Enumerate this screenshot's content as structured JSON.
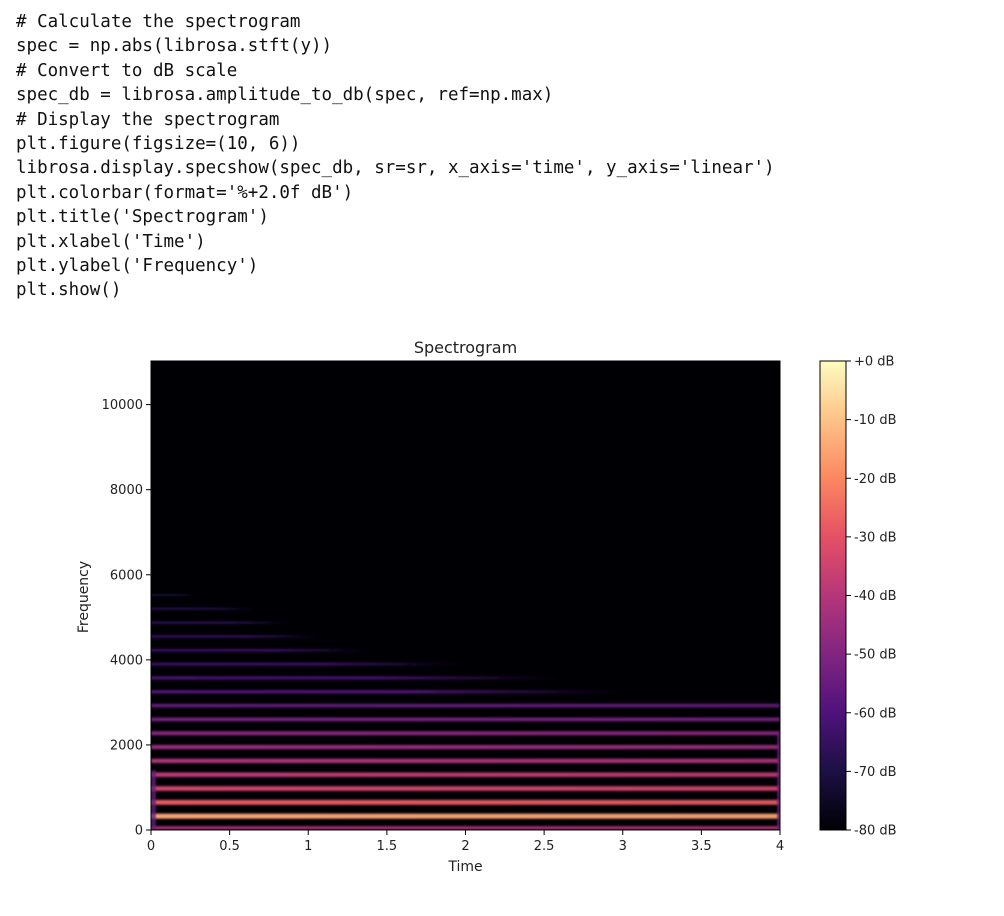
{
  "code": {
    "lines": [
      "# Calculate the spectrogram",
      "spec = np.abs(librosa.stft(y))",
      "# Convert to dB scale",
      "spec_db = librosa.amplitude_to_db(spec, ref=np.max)",
      "# Display the spectrogram",
      "plt.figure(figsize=(10, 6))",
      "librosa.display.specshow(spec_db, sr=sr, x_axis='time', y_axis='linear')",
      "plt.colorbar(format='%+2.0f dB')",
      "plt.title('Spectrogram')",
      "plt.xlabel('Time')",
      "plt.ylabel('Frequency')",
      "plt.show()"
    ]
  },
  "chart_data": {
    "type": "heatmap",
    "title": "Spectrogram",
    "xlabel": "Time",
    "ylabel": "Frequency",
    "xlim": [
      0,
      4
    ],
    "ylim": [
      0,
      11025
    ],
    "x_ticks": [
      0,
      0.5,
      1,
      1.5,
      2,
      2.5,
      3,
      3.5,
      4
    ],
    "x_tick_labels": [
      "0",
      "0.5",
      "1",
      "1.5",
      "2",
      "2.5",
      "3",
      "3.5",
      "4"
    ],
    "y_ticks": [
      0,
      2000,
      4000,
      6000,
      8000,
      10000
    ],
    "y_tick_labels": [
      "0",
      "2000",
      "4000",
      "6000",
      "8000",
      "10000"
    ],
    "colormap": "magma",
    "colorbar": {
      "range": [
        -80,
        0
      ],
      "ticks": [
        0,
        -10,
        -20,
        -30,
        -40,
        -50,
        -60,
        -70,
        -80
      ],
      "tick_labels": [
        "+0 dB",
        "-10 dB",
        "-20 dB",
        "-30 dB",
        "-40 dB",
        "-50 dB",
        "-60 dB",
        "-70 dB",
        "-80 dB"
      ]
    },
    "background_db": -80,
    "harmonic_spacing_hz": 325,
    "harmonics": [
      {
        "freq": 325,
        "db": -15,
        "end_time": 4.0
      },
      {
        "freq": 650,
        "db": -28,
        "end_time": 4.0
      },
      {
        "freq": 975,
        "db": -34,
        "end_time": 4.0
      },
      {
        "freq": 1300,
        "db": -38,
        "end_time": 4.0
      },
      {
        "freq": 1625,
        "db": -41,
        "end_time": 4.0
      },
      {
        "freq": 1950,
        "db": -45,
        "end_time": 4.0
      },
      {
        "freq": 2275,
        "db": -48,
        "end_time": 4.0
      },
      {
        "freq": 2600,
        "db": -52,
        "end_time": 4.0
      },
      {
        "freq": 2925,
        "db": -56,
        "end_time": 4.0
      },
      {
        "freq": 3250,
        "db": -59,
        "end_time": 3.0
      },
      {
        "freq": 3575,
        "db": -61,
        "end_time": 2.6
      },
      {
        "freq": 3900,
        "db": -63,
        "end_time": 2.0
      },
      {
        "freq": 4225,
        "db": -64,
        "end_time": 1.4
      },
      {
        "freq": 4550,
        "db": -66,
        "end_time": 1.1
      },
      {
        "freq": 4875,
        "db": -67,
        "end_time": 0.9
      },
      {
        "freq": 5200,
        "db": -69,
        "end_time": 0.7
      },
      {
        "freq": 5525,
        "db": -72,
        "end_time": 0.3
      }
    ]
  },
  "colors": {
    "magma_stops": [
      "#000004",
      "#1c1044",
      "#4f127b",
      "#812581",
      "#b5367a",
      "#e55064",
      "#fb8761",
      "#fec287",
      "#fcfdbf"
    ]
  }
}
